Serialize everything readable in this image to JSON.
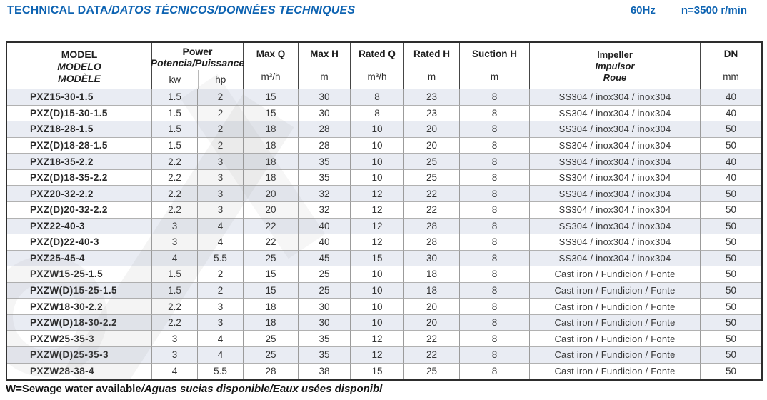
{
  "page": {
    "title": {
      "en": "TECHNICAL DATA",
      "translations": "/DATOS TÉCNICOS/DONNÉES TECHNIQUES"
    },
    "frequency": "60Hz",
    "speed": "n=3500 r/min",
    "footnote": {
      "en": "W=Sewage water available",
      "translations": "/Aguas sucias disponible/Eaux usées disponibl"
    }
  },
  "colors": {
    "accent_blue": "#0d63b2",
    "row_shade": "#e9ecf3",
    "border_dark": "#2d2d2d",
    "border_gray": "#9b9b9b"
  },
  "table": {
    "headers": {
      "model": {
        "en": "MODEL",
        "es": "MODELO",
        "fr": "MODÈLE"
      },
      "power": {
        "en": "Power",
        "other": "Potencia/Puissance",
        "unit1": "kw",
        "unit2": "hp"
      },
      "max_q": {
        "label": "Max Q",
        "unit": "m³/h"
      },
      "max_h": {
        "label": "Max H",
        "unit": "m"
      },
      "rated_q": {
        "label": "Rated Q",
        "unit": "m³/h"
      },
      "rated_h": {
        "label": "Rated H",
        "unit": "m"
      },
      "suction_h": {
        "label": "Suction H",
        "unit": "m"
      },
      "impeller": {
        "en": "Impeller",
        "es": "Impulsor",
        "fr": "Roue"
      },
      "dn": {
        "label": "DN",
        "unit": "mm"
      }
    },
    "rows": [
      {
        "model": "PXZ15-30-1.5",
        "kw": "1.5",
        "hp": "2",
        "max_q": "15",
        "max_h": "30",
        "rated_q": "8",
        "rated_h": "23",
        "suction_h": "8",
        "impeller": "SS304 / inox304 / inox304",
        "dn": "40"
      },
      {
        "model": "PXZ(D)15-30-1.5",
        "kw": "1.5",
        "hp": "2",
        "max_q": "15",
        "max_h": "30",
        "rated_q": "8",
        "rated_h": "23",
        "suction_h": "8",
        "impeller": "SS304 / inox304 / inox304",
        "dn": "40"
      },
      {
        "model": "PXZ18-28-1.5",
        "kw": "1.5",
        "hp": "2",
        "max_q": "18",
        "max_h": "28",
        "rated_q": "10",
        "rated_h": "20",
        "suction_h": "8",
        "impeller": "SS304 / inox304 / inox304",
        "dn": "50"
      },
      {
        "model": "PXZ(D)18-28-1.5",
        "kw": "1.5",
        "hp": "2",
        "max_q": "18",
        "max_h": "28",
        "rated_q": "10",
        "rated_h": "20",
        "suction_h": "8",
        "impeller": "SS304 / inox304 / inox304",
        "dn": "50"
      },
      {
        "model": "PXZ18-35-2.2",
        "kw": "2.2",
        "hp": "3",
        "max_q": "18",
        "max_h": "35",
        "rated_q": "10",
        "rated_h": "25",
        "suction_h": "8",
        "impeller": "SS304 / inox304 / inox304",
        "dn": "40"
      },
      {
        "model": "PXZ(D)18-35-2.2",
        "kw": "2.2",
        "hp": "3",
        "max_q": "18",
        "max_h": "35",
        "rated_q": "10",
        "rated_h": "25",
        "suction_h": "8",
        "impeller": "SS304 / inox304 / inox304",
        "dn": "40"
      },
      {
        "model": "PXZ20-32-2.2",
        "kw": "2.2",
        "hp": "3",
        "max_q": "20",
        "max_h": "32",
        "rated_q": "12",
        "rated_h": "22",
        "suction_h": "8",
        "impeller": "SS304 / inox304 / inox304",
        "dn": "50"
      },
      {
        "model": "PXZ(D)20-32-2.2",
        "kw": "2.2",
        "hp": "3",
        "max_q": "20",
        "max_h": "32",
        "rated_q": "12",
        "rated_h": "22",
        "suction_h": "8",
        "impeller": "SS304 / inox304 / inox304",
        "dn": "50"
      },
      {
        "model": "PXZ22-40-3",
        "kw": "3",
        "hp": "4",
        "max_q": "22",
        "max_h": "40",
        "rated_q": "12",
        "rated_h": "28",
        "suction_h": "8",
        "impeller": "SS304 / inox304 / inox304",
        "dn": "50"
      },
      {
        "model": "PXZ(D)22-40-3",
        "kw": "3",
        "hp": "4",
        "max_q": "22",
        "max_h": "40",
        "rated_q": "12",
        "rated_h": "28",
        "suction_h": "8",
        "impeller": "SS304 / inox304 / inox304",
        "dn": "50"
      },
      {
        "model": "PXZ25-45-4",
        "kw": "4",
        "hp": "5.5",
        "max_q": "25",
        "max_h": "45",
        "rated_q": "15",
        "rated_h": "30",
        "suction_h": "8",
        "impeller": "SS304 / inox304 / inox304",
        "dn": "50"
      },
      {
        "model": "PXZW15-25-1.5",
        "kw": "1.5",
        "hp": "2",
        "max_q": "15",
        "max_h": "25",
        "rated_q": "10",
        "rated_h": "18",
        "suction_h": "8",
        "impeller": "Cast iron / Fundicion / Fonte",
        "dn": "50"
      },
      {
        "model": "PXZW(D)15-25-1.5",
        "kw": "1.5",
        "hp": "2",
        "max_q": "15",
        "max_h": "25",
        "rated_q": "10",
        "rated_h": "18",
        "suction_h": "8",
        "impeller": "Cast iron / Fundicion / Fonte",
        "dn": "50"
      },
      {
        "model": "PXZW18-30-2.2",
        "kw": "2.2",
        "hp": "3",
        "max_q": "18",
        "max_h": "30",
        "rated_q": "10",
        "rated_h": "20",
        "suction_h": "8",
        "impeller": "Cast iron / Fundicion / Fonte",
        "dn": "50"
      },
      {
        "model": "PXZW(D)18-30-2.2",
        "kw": "2.2",
        "hp": "3",
        "max_q": "18",
        "max_h": "30",
        "rated_q": "10",
        "rated_h": "20",
        "suction_h": "8",
        "impeller": "Cast iron / Fundicion / Fonte",
        "dn": "50"
      },
      {
        "model": "PXZW25-35-3",
        "kw": "3",
        "hp": "4",
        "max_q": "25",
        "max_h": "35",
        "rated_q": "12",
        "rated_h": "22",
        "suction_h": "8",
        "impeller": "Cast iron / Fundicion / Fonte",
        "dn": "50"
      },
      {
        "model": "PXZW(D)25-35-3",
        "kw": "3",
        "hp": "4",
        "max_q": "25",
        "max_h": "35",
        "rated_q": "12",
        "rated_h": "22",
        "suction_h": "8",
        "impeller": "Cast iron / Fundicion / Fonte",
        "dn": "50"
      },
      {
        "model": "PXZW28-38-4",
        "kw": "4",
        "hp": "5.5",
        "max_q": "28",
        "max_h": "38",
        "rated_q": "15",
        "rated_h": "25",
        "suction_h": "8",
        "impeller": "Cast iron / Fundicion / Fonte",
        "dn": "50"
      }
    ]
  }
}
